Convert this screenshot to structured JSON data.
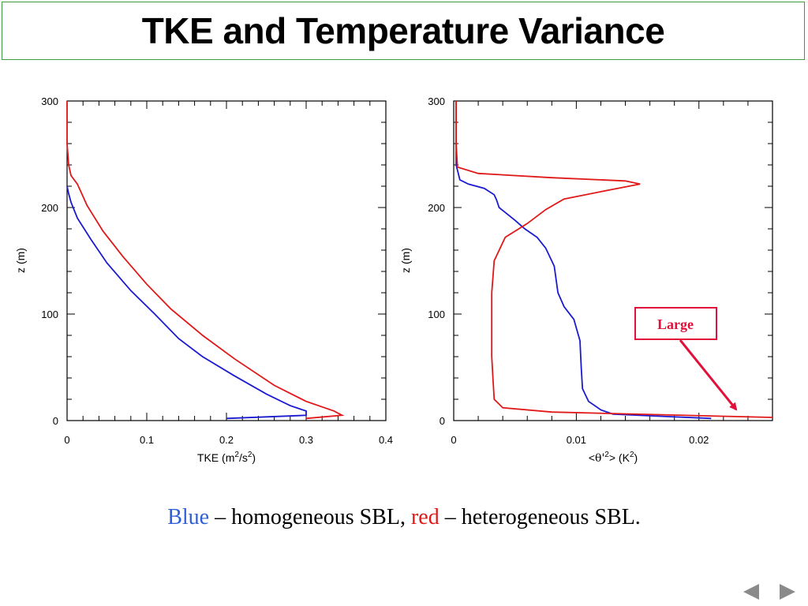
{
  "slide": {
    "title": "TKE and Temperature Variance",
    "caption": {
      "blue_word": "Blue",
      "part1": " – homogeneous SBL, ",
      "red_word": "red",
      "part2": " – heterogeneous SBL."
    },
    "callout": "Large",
    "nav": {
      "prev_icon": "triangle-left-icon",
      "next_icon": "triangle-right-icon"
    }
  },
  "colors": {
    "blue": "#1a1ad0",
    "red": "#e01818",
    "frame_green": "#3e9a3e",
    "callout": "#e0103a"
  },
  "chart_data": [
    {
      "type": "line",
      "xlabel_main": "TKE (m",
      "xlabel_sup1": "2",
      "xlabel_mid": "/s",
      "xlabel_sup2": "2",
      "xlabel_end": ")",
      "ylabel": "z (m)",
      "xlim": [
        0,
        0.4
      ],
      "ylim": [
        0,
        300
      ],
      "xticks": [
        0,
        0.1,
        0.2,
        0.3,
        0.4
      ],
      "xtick_labels": [
        "0",
        "0.1",
        "0.2",
        "0.3",
        "0.4"
      ],
      "yticks": [
        0,
        100,
        200,
        300
      ],
      "ytick_labels": [
        "0",
        "100",
        "200",
        "300"
      ],
      "series": [
        {
          "color": "blue",
          "points": [
            [
              0.2,
              2
            ],
            [
              0.3,
              5
            ],
            [
              0.3,
              9
            ],
            [
              0.28,
              14
            ],
            [
              0.25,
              25
            ],
            [
              0.21,
              42
            ],
            [
              0.17,
              60
            ],
            [
              0.14,
              77
            ],
            [
              0.11,
              100
            ],
            [
              0.08,
              122
            ],
            [
              0.05,
              148
            ],
            [
              0.03,
              170
            ],
            [
              0.013,
              190
            ],
            [
              0.005,
              205
            ],
            [
              0.002,
              213
            ],
            [
              0.0,
              220
            ]
          ]
        },
        {
          "color": "red",
          "points": [
            [
              0.3,
              2
            ],
            [
              0.345,
              5
            ],
            [
              0.335,
              9
            ],
            [
              0.3,
              18
            ],
            [
              0.26,
              33
            ],
            [
              0.21,
              58
            ],
            [
              0.17,
              80
            ],
            [
              0.13,
              105
            ],
            [
              0.1,
              128
            ],
            [
              0.07,
              154
            ],
            [
              0.045,
              178
            ],
            [
              0.025,
              202
            ],
            [
              0.013,
              222
            ],
            [
              0.005,
              230
            ],
            [
              0.002,
              240
            ],
            [
              0.0,
              260
            ],
            [
              0.0,
              300
            ]
          ]
        }
      ]
    },
    {
      "type": "line",
      "xlabel_main": "<",
      "xlabel_theta": "θ'",
      "xlabel_sup1": "2",
      "xlabel_mid": "> (K",
      "xlabel_sup2": "2",
      "xlabel_end": ")",
      "ylabel": "z (m)",
      "xlim": [
        0,
        0.026
      ],
      "ylim": [
        0,
        300
      ],
      "xticks": [
        0,
        0.01,
        0.02
      ],
      "xtick_labels": [
        "0",
        "0.01",
        "0.02"
      ],
      "yticks": [
        0,
        100,
        200,
        300
      ],
      "ytick_labels": [
        "0",
        "100",
        "200",
        "300"
      ],
      "series": [
        {
          "color": "blue",
          "points": [
            [
              0.021,
              2
            ],
            [
              0.017,
              4
            ],
            [
              0.013,
              6
            ],
            [
              0.012,
              10
            ],
            [
              0.011,
              18
            ],
            [
              0.0105,
              30
            ],
            [
              0.0104,
              50
            ],
            [
              0.0103,
              75
            ],
            [
              0.0098,
              95
            ],
            [
              0.009,
              107
            ],
            [
              0.0085,
              120
            ],
            [
              0.0082,
              145
            ],
            [
              0.0075,
              162
            ],
            [
              0.0068,
              172
            ],
            [
              0.0058,
              180
            ],
            [
              0.005,
              188
            ],
            [
              0.0037,
              200
            ],
            [
              0.0035,
              207
            ],
            [
              0.0033,
              212
            ],
            [
              0.0025,
              218
            ],
            [
              0.0012,
              222
            ],
            [
              0.0005,
              226
            ],
            [
              0.0002,
              240
            ],
            [
              0.0002,
              300
            ]
          ]
        },
        {
          "color": "red",
          "points": [
            [
              0.026,
              3
            ],
            [
              0.015,
              6
            ],
            [
              0.008,
              8
            ],
            [
              0.004,
              12
            ],
            [
              0.0033,
              20
            ],
            [
              0.0032,
              40
            ],
            [
              0.0031,
              60
            ],
            [
              0.0031,
              90
            ],
            [
              0.0031,
              120
            ],
            [
              0.0033,
              150
            ],
            [
              0.0042,
              172
            ],
            [
              0.006,
              185
            ],
            [
              0.0075,
              198
            ],
            [
              0.009,
              208
            ],
            [
              0.0125,
              216
            ],
            [
              0.0152,
              222
            ],
            [
              0.014,
              225
            ],
            [
              0.008,
              228
            ],
            [
              0.002,
              232
            ],
            [
              0.0003,
              238
            ],
            [
              0.0002,
              260
            ],
            [
              0.0002,
              300
            ]
          ]
        }
      ]
    }
  ]
}
